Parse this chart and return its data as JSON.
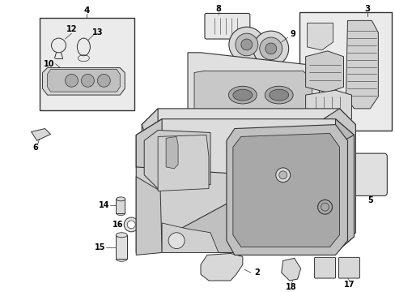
{
  "background_color": "#ffffff",
  "line_color": "#333333",
  "label_color": "#000000",
  "fig_width": 4.89,
  "fig_height": 3.6,
  "dpi": 100,
  "gray_fill": "#e8e8e8",
  "dark_gray": "#b0b0b0",
  "mid_gray": "#cccccc",
  "light_gray": "#f0f0f0"
}
